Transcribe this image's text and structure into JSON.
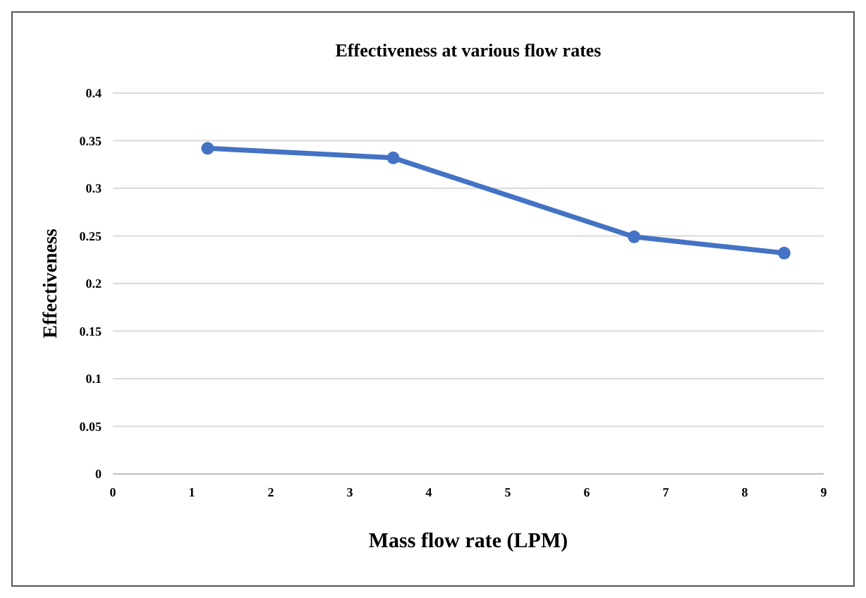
{
  "chart_data": {
    "type": "line",
    "title": "Effectiveness at various flow rates",
    "xlabel": "Mass flow rate (LPM)",
    "ylabel": "Effectiveness",
    "x": [
      1.2,
      3.55,
      6.6,
      8.5
    ],
    "series": [
      {
        "color": "#4472c4",
        "values": [
          0.342,
          0.332,
          0.249,
          0.232
        ]
      }
    ],
    "xlim": [
      0,
      9
    ],
    "xticks": [
      0,
      1,
      2,
      3,
      4,
      5,
      6,
      7,
      8,
      9
    ],
    "ylim": [
      0,
      0.4
    ],
    "yticks": [
      0,
      0.05,
      0.1,
      0.15,
      0.2,
      0.25,
      0.3,
      0.35,
      0.4
    ],
    "grid": "y",
    "marker": "circle",
    "line_style": "solid"
  }
}
